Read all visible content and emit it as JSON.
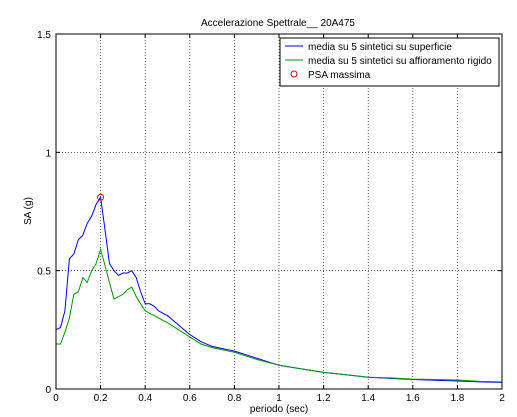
{
  "chart_data": {
    "type": "line",
    "title": "Accelerazione Spettrale__ 20A475",
    "xlabel": "periodo (sec)",
    "ylabel": "SA (g)",
    "xlim": [
      0,
      2
    ],
    "ylim": [
      0,
      1.5
    ],
    "grid": true,
    "legend_position": "top-right",
    "x_ticks": [
      "0",
      "0.2",
      "0.4",
      "0.6",
      "0.8",
      "1",
      "1.2",
      "1.4",
      "1.6",
      "1.8",
      "2"
    ],
    "y_ticks": [
      "0",
      "0.5",
      "1",
      "1.5"
    ],
    "series": [
      {
        "name": "media su 5 sintetici su superficie",
        "color": "#0000ff",
        "x": [
          0,
          0.02,
          0.04,
          0.06,
          0.08,
          0.1,
          0.12,
          0.14,
          0.16,
          0.18,
          0.2,
          0.22,
          0.24,
          0.26,
          0.28,
          0.3,
          0.32,
          0.34,
          0.36,
          0.38,
          0.4,
          0.42,
          0.44,
          0.46,
          0.48,
          0.5,
          0.55,
          0.6,
          0.65,
          0.7,
          0.8,
          0.9,
          1.0,
          1.1,
          1.2,
          1.3,
          1.4,
          1.5,
          1.6,
          1.7,
          1.8,
          1.9,
          2.0
        ],
        "y": [
          0.25,
          0.26,
          0.33,
          0.55,
          0.57,
          0.63,
          0.65,
          0.7,
          0.73,
          0.78,
          0.81,
          0.67,
          0.53,
          0.5,
          0.48,
          0.49,
          0.49,
          0.5,
          0.47,
          0.41,
          0.36,
          0.36,
          0.35,
          0.33,
          0.32,
          0.31,
          0.27,
          0.23,
          0.2,
          0.18,
          0.16,
          0.13,
          0.1,
          0.085,
          0.07,
          0.06,
          0.05,
          0.045,
          0.04,
          0.037,
          0.034,
          0.03,
          0.028
        ]
      },
      {
        "name": "media su 5 sintetici su affioramento rigido",
        "color": "#009900",
        "x": [
          0,
          0.02,
          0.04,
          0.06,
          0.08,
          0.1,
          0.12,
          0.14,
          0.16,
          0.18,
          0.2,
          0.22,
          0.24,
          0.26,
          0.28,
          0.3,
          0.32,
          0.34,
          0.36,
          0.38,
          0.4,
          0.42,
          0.44,
          0.46,
          0.48,
          0.5,
          0.55,
          0.6,
          0.65,
          0.7,
          0.8,
          0.9,
          1.0,
          1.1,
          1.2,
          1.3,
          1.4,
          1.5,
          1.6,
          1.7,
          1.8,
          1.9,
          2.0
        ],
        "y": [
          0.19,
          0.19,
          0.24,
          0.3,
          0.4,
          0.41,
          0.47,
          0.45,
          0.5,
          0.53,
          0.59,
          0.52,
          0.45,
          0.38,
          0.39,
          0.4,
          0.42,
          0.43,
          0.39,
          0.36,
          0.33,
          0.32,
          0.31,
          0.3,
          0.29,
          0.28,
          0.25,
          0.22,
          0.19,
          0.175,
          0.155,
          0.125,
          0.1,
          0.085,
          0.07,
          0.06,
          0.05,
          0.047,
          0.042,
          0.04,
          0.038,
          0.032,
          0.03
        ]
      }
    ],
    "markers": [
      {
        "name": "PSA massima",
        "color": "#ff0000",
        "x": 0.2,
        "y": 0.81
      }
    ]
  }
}
